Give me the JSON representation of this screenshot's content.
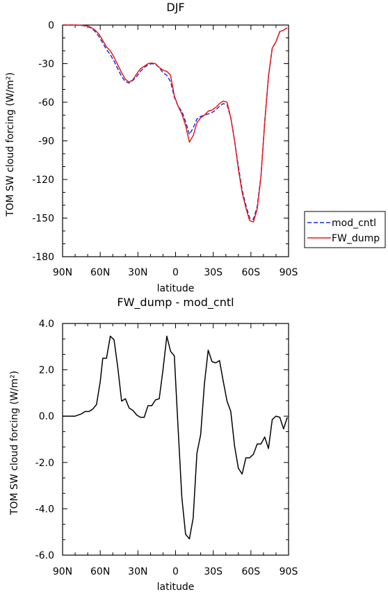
{
  "chart_data": [
    {
      "type": "line",
      "title": "DJF",
      "xlabel": "latitude",
      "ylabel": "TOM SW cloud forcing (W/m²)",
      "xlim": [
        90,
        -90
      ],
      "ylim": [
        -180,
        0
      ],
      "x_ticks": [
        90,
        60,
        30,
        0,
        -30,
        -60,
        -90
      ],
      "x_tick_labels": [
        "90N",
        "60N",
        "30N",
        "0",
        "30S",
        "60S",
        "90S"
      ],
      "y_ticks": [
        0,
        -30,
        -60,
        -90,
        -120,
        -150,
        -180
      ],
      "y_tick_labels": [
        "0",
        "-30",
        "-60",
        "-90",
        "-120",
        "-150",
        "-180"
      ],
      "grid": false,
      "legend_position": "right",
      "series": [
        {
          "name": "mod_cntl",
          "color": "#1f2bd6",
          "dash": "dashed",
          "x": [
            90,
            85,
            80,
            75,
            70,
            67,
            64,
            61,
            58,
            55,
            52,
            49,
            46,
            43,
            40,
            37,
            34,
            31,
            28,
            25,
            22,
            19,
            16,
            13,
            10,
            7,
            4,
            1,
            -2,
            -5,
            -8,
            -11,
            -14,
            -17,
            -20,
            -23,
            -26,
            -29,
            -32,
            -35,
            -38,
            -41,
            -44,
            -47,
            -50,
            -53,
            -56,
            -59,
            -62,
            -65,
            -68,
            -71,
            -74,
            -77,
            -80,
            -83,
            -86,
            -89
          ],
          "y": [
            0,
            0,
            0,
            -0.3,
            -1,
            -2.5,
            -5,
            -9,
            -14,
            -19,
            -23,
            -28,
            -34,
            -40,
            -44,
            -45,
            -43,
            -40,
            -36,
            -33,
            -31,
            -30,
            -30.5,
            -33,
            -37,
            -39,
            -44,
            -56,
            -63,
            -67,
            -75,
            -85,
            -80,
            -73,
            -71,
            -70,
            -69,
            -68,
            -66,
            -63,
            -61,
            -62,
            -72,
            -90,
            -110,
            -128,
            -140,
            -150,
            -151,
            -141,
            -117,
            -75,
            -40,
            -18,
            -13,
            -5,
            -4,
            -2
          ]
        },
        {
          "name": "FW_dump",
          "color": "#e81818",
          "dash": "solid",
          "x": [
            90,
            85,
            80,
            75,
            70,
            67,
            64,
            61,
            58,
            55,
            52,
            49,
            46,
            43,
            40,
            37,
            34,
            31,
            28,
            25,
            22,
            19,
            16,
            13,
            10,
            7,
            4,
            1,
            -2,
            -5,
            -8,
            -11,
            -14,
            -17,
            -20,
            -23,
            -26,
            -29,
            -32,
            -35,
            -38,
            -41,
            -44,
            -47,
            -50,
            -53,
            -56,
            -59,
            -62,
            -65,
            -68,
            -71,
            -74,
            -77,
            -80,
            -83,
            -86,
            -89
          ],
          "y": [
            0,
            0,
            0,
            -0.2,
            -0.8,
            -2,
            -4,
            -7,
            -12,
            -17,
            -20,
            -25,
            -31,
            -37,
            -42,
            -44.5,
            -42.5,
            -38,
            -34,
            -32,
            -30,
            -29.5,
            -30,
            -33,
            -35,
            -36,
            -39,
            -55,
            -63,
            -69,
            -78,
            -91,
            -86,
            -76,
            -72,
            -70,
            -67,
            -66,
            -64,
            -61,
            -59,
            -60,
            -72,
            -90,
            -112,
            -130,
            -142,
            -152,
            -153,
            -143,
            -118,
            -76,
            -40,
            -18,
            -13,
            -5,
            -4,
            -2
          ]
        }
      ]
    },
    {
      "type": "line",
      "title": "FW_dump - mod_cntl",
      "xlabel": "latitude",
      "ylabel": "TOM SW cloud forcing (W/m²)",
      "xlim": [
        90,
        -90
      ],
      "ylim": [
        -6,
        4
      ],
      "x_ticks": [
        90,
        60,
        30,
        0,
        -30,
        -60,
        -90
      ],
      "x_tick_labels": [
        "90N",
        "60N",
        "30N",
        "0",
        "30S",
        "60S",
        "90S"
      ],
      "y_ticks": [
        4,
        2,
        0,
        -2,
        -4,
        -6
      ],
      "y_tick_labels": [
        "4.0",
        "2.0",
        "0.0",
        "-2.0",
        "-4.0",
        "-6.0"
      ],
      "grid": false,
      "series": [
        {
          "color": "#000000",
          "dash": "solid",
          "x": [
            90,
            85,
            80,
            75,
            72,
            69,
            66,
            63,
            60,
            58,
            55,
            52,
            49,
            46,
            43,
            40,
            37,
            34,
            31,
            28,
            25,
            22,
            19,
            16,
            13,
            10,
            7,
            4,
            1,
            -2,
            -5,
            -8,
            -11,
            -14,
            -17,
            -20,
            -23,
            -26,
            -29,
            -32,
            -35,
            -38,
            -41,
            -44,
            -47,
            -50,
            -53,
            -56,
            -59,
            -62,
            -65,
            -68,
            -71,
            -74,
            -77,
            -80,
            -83,
            -86,
            -89
          ],
          "y": [
            0,
            0,
            0,
            0.1,
            0.2,
            0.2,
            0.3,
            0.5,
            1.5,
            2.5,
            2.5,
            3.45,
            3.3,
            2.1,
            0.65,
            0.75,
            0.35,
            0.25,
            0.05,
            -0.05,
            -0.05,
            0.45,
            0.45,
            0.7,
            0.75,
            2.0,
            3.45,
            2.8,
            2.6,
            -0.5,
            -3.5,
            -5.1,
            -5.3,
            -4.4,
            -1.6,
            -0.8,
            1.4,
            2.85,
            2.35,
            2.3,
            2.4,
            1.5,
            0.65,
            0.2,
            -1.3,
            -2.25,
            -2.5,
            -1.8,
            -1.8,
            -1.65,
            -1.2,
            -1.2,
            -0.9,
            -1.4,
            -0.15,
            0.0,
            -0.05,
            -0.55,
            -0.05
          ]
        }
      ]
    }
  ]
}
